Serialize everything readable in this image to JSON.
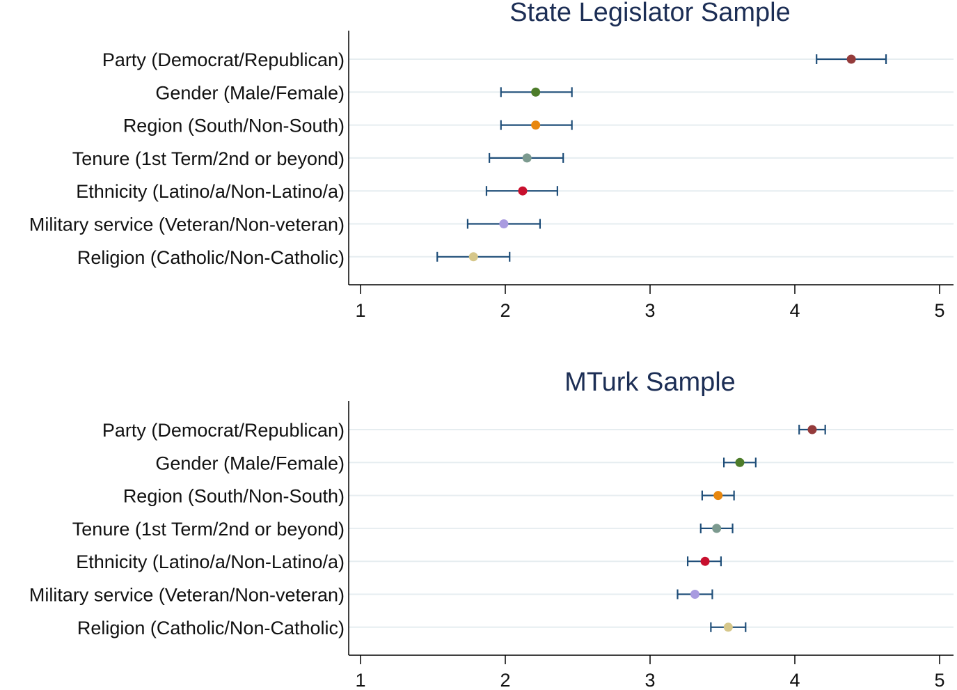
{
  "chart_data": [
    {
      "type": "scatter",
      "title": "State Legislator Sample",
      "xlabel": "",
      "ylabel": "",
      "xlim": [
        1,
        5
      ],
      "xticks": [
        "1",
        "2",
        "3",
        "4",
        "5"
      ],
      "grid": true,
      "series_color": "#1f4e79",
      "points": [
        {
          "label": "Party (Democrat/Republican)",
          "value": 4.39,
          "lo": 4.15,
          "hi": 4.63,
          "color": "#943b3b"
        },
        {
          "label": "Gender (Male/Female)",
          "value": 2.21,
          "lo": 1.97,
          "hi": 2.46,
          "color": "#4d7c2a"
        },
        {
          "label": "Region (South/Non-South)",
          "value": 2.21,
          "lo": 1.97,
          "hi": 2.46,
          "color": "#e8870e"
        },
        {
          "label": "Tenure (1st Term/2nd or beyond)",
          "value": 2.15,
          "lo": 1.89,
          "hi": 2.4,
          "color": "#7c9a8f"
        },
        {
          "label": "Ethnicity (Latino/a/Non-Latino/a)",
          "value": 2.12,
          "lo": 1.87,
          "hi": 2.36,
          "color": "#c8102e"
        },
        {
          "label": "Military service (Veteran/Non-veteran)",
          "value": 1.99,
          "lo": 1.74,
          "hi": 2.24,
          "color": "#a99be0"
        },
        {
          "label": "Religion (Catholic/Non-Catholic)",
          "value": 1.78,
          "lo": 1.53,
          "hi": 2.03,
          "color": "#d6c78a"
        }
      ]
    },
    {
      "type": "scatter",
      "title": "MTurk Sample",
      "xlabel": "",
      "ylabel": "",
      "xlim": [
        1,
        5
      ],
      "xticks": [
        "1",
        "2",
        "3",
        "4",
        "5"
      ],
      "grid": true,
      "series_color": "#1f4e79",
      "points": [
        {
          "label": "Party (Democrat/Republican)",
          "value": 4.12,
          "lo": 4.03,
          "hi": 4.21,
          "color": "#943b3b"
        },
        {
          "label": "Gender (Male/Female)",
          "value": 3.62,
          "lo": 3.51,
          "hi": 3.73,
          "color": "#4d7c2a"
        },
        {
          "label": "Region (South/Non-South)",
          "value": 3.47,
          "lo": 3.36,
          "hi": 3.58,
          "color": "#e8870e"
        },
        {
          "label": "Tenure (1st Term/2nd or beyond)",
          "value": 3.46,
          "lo": 3.35,
          "hi": 3.57,
          "color": "#7c9a8f"
        },
        {
          "label": "Ethnicity (Latino/a/Non-Latino/a)",
          "value": 3.38,
          "lo": 3.26,
          "hi": 3.49,
          "color": "#c8102e"
        },
        {
          "label": "Military service (Veteran/Non-veteran)",
          "value": 3.31,
          "lo": 3.19,
          "hi": 3.43,
          "color": "#a99be0"
        },
        {
          "label": "Religion (Catholic/Non-Catholic)",
          "value": 3.54,
          "lo": 3.42,
          "hi": 3.66,
          "color": "#d6c78a"
        }
      ]
    }
  ]
}
